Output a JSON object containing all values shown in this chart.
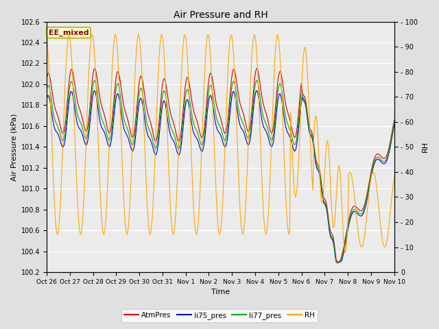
{
  "title": "Air Pressure and RH",
  "xlabel": "Time",
  "ylabel_left": "Air Pressure (kPa)",
  "ylabel_right": "RH",
  "ylim_left": [
    100.2,
    102.6
  ],
  "ylim_right": [
    0,
    100
  ],
  "yticks_left": [
    100.2,
    100.4,
    100.6,
    100.8,
    101.0,
    101.2,
    101.4,
    101.6,
    101.8,
    102.0,
    102.2,
    102.4,
    102.6
  ],
  "yticks_right": [
    0,
    10,
    20,
    30,
    40,
    50,
    60,
    70,
    80,
    90,
    100
  ],
  "annotation_text": "EE_mixed",
  "annotation_color": "#8B0000",
  "annotation_bg": "#FFFFCC",
  "annotation_border": "#B8B000",
  "color_atm": "#CC0000",
  "color_li75": "#0000CC",
  "color_li77": "#00AA00",
  "color_rh": "#FFA500",
  "legend_labels": [
    "AtmPres",
    "li75_pres",
    "li77_pres",
    "RH"
  ],
  "bg_color": "#E0E0E0",
  "plot_bg": "#EBEBEB",
  "grid_color": "#FFFFFF",
  "xtick_labels": [
    "Oct 26",
    "Oct 27",
    "Oct 28",
    "Oct 29",
    "Oct 30",
    "Oct 31",
    "Nov 1",
    "Nov 2",
    "Nov 3",
    "Nov 4",
    "Nov 5",
    "Nov 6",
    "Nov 7",
    "Nov 8",
    "Nov 9",
    "Nov 10"
  ],
  "n_days": 15
}
